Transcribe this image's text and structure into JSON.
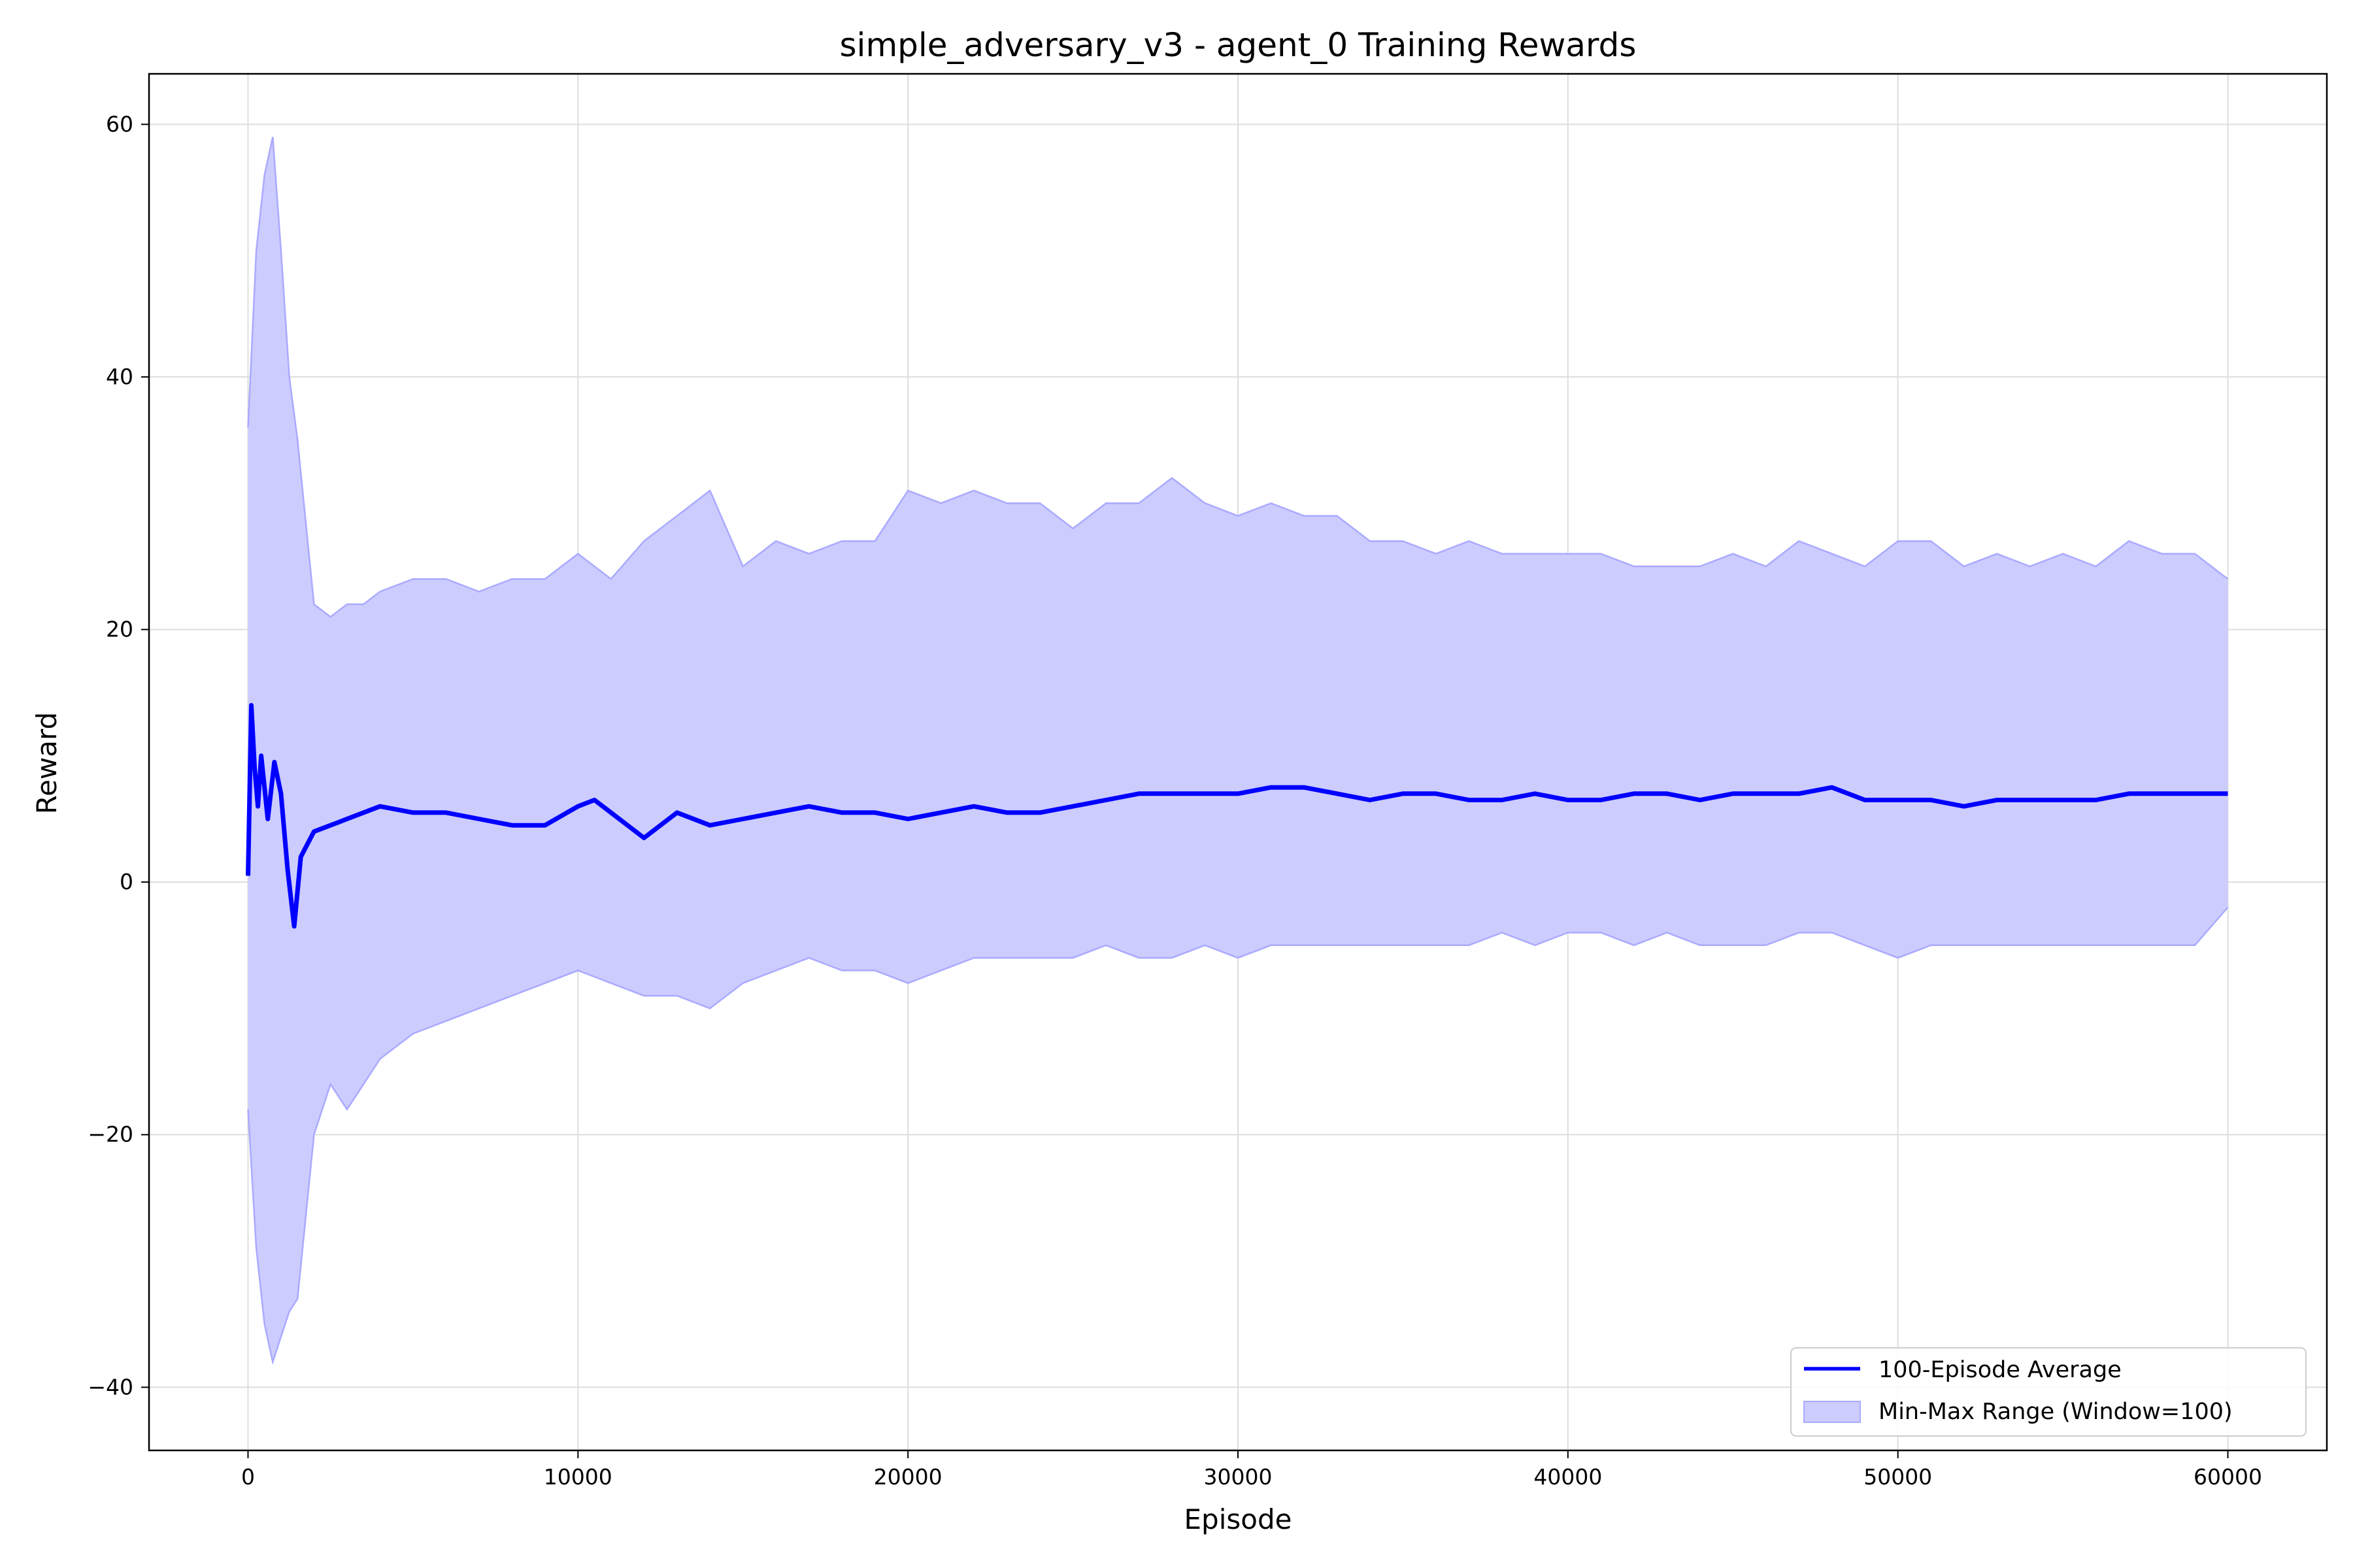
{
  "chart_data": {
    "type": "line",
    "title": "simple_adversary_v3 - agent_0 Training Rewards",
    "xlabel": "Episode",
    "ylabel": "Reward",
    "xlim": [
      -3000,
      63000
    ],
    "ylim": [
      -45,
      64
    ],
    "xticks": [
      0,
      10000,
      20000,
      30000,
      40000,
      50000,
      60000
    ],
    "xtick_labels": [
      "0",
      "10000",
      "20000",
      "30000",
      "40000",
      "50000",
      "60000"
    ],
    "yticks": [
      -40,
      -20,
      0,
      20,
      40,
      60
    ],
    "ytick_labels": [
      "−40",
      "−20",
      "0",
      "20",
      "40",
      "60"
    ],
    "grid": true,
    "legend_position": "lower-right",
    "colors": {
      "average": "#0000ff",
      "range_fill": "#ccccff",
      "range_edge": "#aaaaff"
    },
    "series": [
      {
        "name": "100-Episode Average",
        "kind": "line",
        "x": [
          0,
          100,
          200,
          300,
          400,
          600,
          800,
          1000,
          1200,
          1400,
          1600,
          1800,
          2000,
          2500,
          3000,
          3500,
          4000,
          5000,
          6000,
          7000,
          8000,
          9000,
          10000,
          10500,
          11000,
          12000,
          13000,
          14000,
          15000,
          16000,
          17000,
          18000,
          19000,
          20000,
          21000,
          22000,
          23000,
          24000,
          25000,
          26000,
          27000,
          28000,
          29000,
          30000,
          31000,
          32000,
          33000,
          34000,
          35000,
          36000,
          37000,
          38000,
          39000,
          40000,
          41000,
          42000,
          43000,
          44000,
          45000,
          46000,
          47000,
          48000,
          49000,
          50000,
          51000,
          52000,
          53000,
          54000,
          55000,
          56000,
          57000,
          58000,
          59000,
          60000
        ],
        "values": [
          0.5,
          14.0,
          9.0,
          6.0,
          10.0,
          5.0,
          9.5,
          7.0,
          1.0,
          -3.5,
          2.0,
          3.0,
          4.0,
          4.5,
          5.0,
          5.5,
          6.0,
          5.5,
          5.5,
          5.0,
          4.5,
          4.5,
          6.0,
          6.5,
          5.5,
          3.5,
          5.5,
          4.5,
          5.0,
          5.5,
          6.0,
          5.5,
          5.5,
          5.0,
          5.5,
          6.0,
          5.5,
          5.5,
          6.0,
          6.5,
          7.0,
          7.0,
          7.0,
          7.0,
          7.5,
          7.5,
          7.0,
          6.5,
          7.0,
          7.0,
          6.5,
          6.5,
          7.0,
          6.5,
          6.5,
          7.0,
          7.0,
          6.5,
          7.0,
          7.0,
          7.0,
          7.5,
          6.5,
          6.5,
          6.5,
          6.0,
          6.5,
          6.5,
          6.5,
          6.5,
          7.0,
          7.0,
          7.0,
          7.0
        ]
      },
      {
        "name": "Min-Max Range (Window=100)",
        "kind": "band",
        "x": [
          0,
          250,
          500,
          750,
          1000,
          1250,
          1500,
          2000,
          2500,
          3000,
          3500,
          4000,
          5000,
          6000,
          7000,
          8000,
          9000,
          10000,
          11000,
          12000,
          13000,
          14000,
          15000,
          16000,
          17000,
          18000,
          19000,
          20000,
          21000,
          22000,
          23000,
          24000,
          25000,
          26000,
          27000,
          28000,
          29000,
          30000,
          31000,
          32000,
          33000,
          34000,
          35000,
          36000,
          37000,
          38000,
          39000,
          40000,
          41000,
          42000,
          43000,
          44000,
          45000,
          46000,
          47000,
          48000,
          49000,
          50000,
          51000,
          52000,
          53000,
          54000,
          55000,
          56000,
          57000,
          58000,
          59000,
          60000
        ],
        "lower": [
          -18,
          -29,
          -35,
          -38,
          -36,
          -34,
          -33,
          -20,
          -16,
          -18,
          -16,
          -14,
          -12,
          -11,
          -10,
          -9,
          -8,
          -7,
          -8,
          -9,
          -9,
          -10,
          -8,
          -7,
          -6,
          -7,
          -7,
          -8,
          -7,
          -6,
          -6,
          -6,
          -6,
          -5,
          -6,
          -6,
          -5,
          -6,
          -5,
          -5,
          -5,
          -5,
          -5,
          -5,
          -5,
          -4,
          -5,
          -4,
          -4,
          -5,
          -4,
          -5,
          -5,
          -5,
          -4,
          -4,
          -5,
          -6,
          -5,
          -5,
          -5,
          -5,
          -5,
          -5,
          -5,
          -5,
          -5,
          -2
        ],
        "upper": [
          36,
          50,
          56,
          59,
          50,
          40,
          35,
          22,
          21,
          22,
          22,
          23,
          24,
          24,
          23,
          24,
          24,
          26,
          24,
          27,
          29,
          31,
          25,
          27,
          26,
          27,
          27,
          31,
          30,
          31,
          30,
          30,
          28,
          30,
          30,
          32,
          30,
          29,
          30,
          29,
          29,
          27,
          27,
          26,
          27,
          26,
          26,
          26,
          26,
          25,
          25,
          25,
          26,
          25,
          27,
          26,
          25,
          27,
          27,
          25,
          26,
          25,
          26,
          25,
          27,
          26,
          26,
          24
        ]
      }
    ]
  }
}
